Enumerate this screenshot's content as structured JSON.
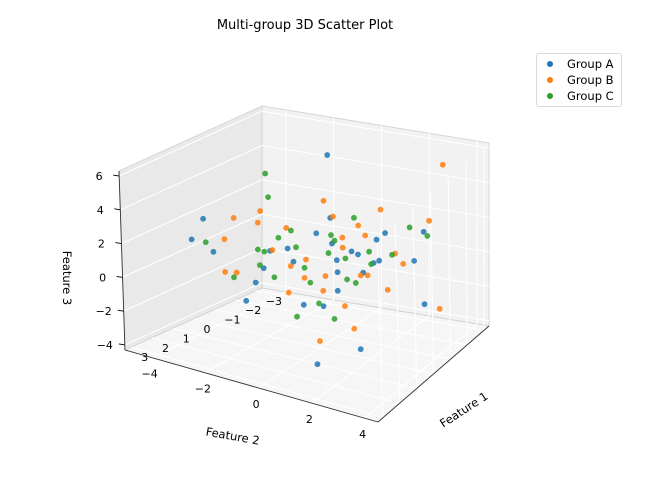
{
  "chart_data": {
    "type": "scatter",
    "projection": "3d",
    "title": "Multi-group 3D Scatter Plot",
    "xlabel": "Feature 1",
    "ylabel": "Feature 2",
    "zlabel": "Feature 3",
    "xlim": [
      3.3,
      -3.3
    ],
    "ylim": [
      -5,
      4.5
    ],
    "zlim": [
      -4.3,
      6.3
    ],
    "xticks": [
      "3",
      "2",
      "1",
      "0",
      "−1",
      "−2",
      "−3"
    ],
    "xtick_values": [
      3,
      2,
      1,
      0,
      -1,
      -2,
      -3
    ],
    "yticks": [
      "−4",
      "−2",
      "0",
      "2",
      "4"
    ],
    "ytick_values": [
      -4,
      -2,
      0,
      2,
      4
    ],
    "zticks": [
      "−4",
      "−2",
      "0",
      "2",
      "4",
      "6"
    ],
    "ztick_values": [
      -4,
      -2,
      0,
      2,
      4,
      6
    ],
    "grid": true,
    "legend_position": "top-right",
    "series": [
      {
        "name": "Group A",
        "color": "#1f77b4",
        "points": [
          [
            0.5,
            -4.6,
            0.8
          ],
          [
            0.3,
            -4.3,
            2.0
          ],
          [
            1.0,
            -2.1,
            -1.6
          ],
          [
            -1.4,
            3.2,
            -1.8
          ],
          [
            1.5,
            1.0,
            -3.8
          ],
          [
            0.8,
            2.2,
            -3.0
          ],
          [
            -1.9,
            -1.1,
            5.3
          ],
          [
            -0.2,
            0.4,
            1.8
          ],
          [
            -0.5,
            2.3,
            2.8
          ],
          [
            -0.9,
            -0.2,
            2.6
          ],
          [
            0.9,
            -1.2,
            1.6
          ],
          [
            0.5,
            -0.6,
            0.9
          ],
          [
            -1.8,
            2.5,
            0.2
          ],
          [
            -0.9,
            0.9,
            0.8
          ],
          [
            0.6,
            -1.7,
            0.2
          ],
          [
            -0.1,
            1.7,
            0.6
          ],
          [
            1.4,
            -1.4,
            0.0
          ],
          [
            -0.6,
            0.3,
            -0.2
          ],
          [
            0.7,
            0.7,
            -1.1
          ],
          [
            -1.1,
            1.6,
            0.5
          ],
          [
            -0.3,
            -0.3,
            2.1
          ],
          [
            0.1,
            1.4,
            1.9
          ],
          [
            1.3,
            -3.1,
            1.1
          ],
          [
            -2.2,
            2.6,
            1.6
          ],
          [
            0.2,
            0.9,
            -0.5
          ],
          [
            -0.7,
            0.2,
            0.4
          ],
          [
            1.2,
            0.3,
            -0.8
          ],
          [
            -1.5,
            1.2,
            1.3
          ],
          [
            0.4,
            -0.9,
            1.5
          ],
          [
            -0.4,
            1.9,
            1.0
          ]
        ]
      },
      {
        "name": "Group B",
        "color": "#ff7f0e",
        "points": [
          [
            -2.6,
            3.1,
            5.3
          ],
          [
            0.2,
            0.4,
            4.6
          ],
          [
            1.4,
            -2.2,
            3.5
          ],
          [
            1.1,
            -1.4,
            4.0
          ],
          [
            -0.4,
            0.3,
            3.2
          ],
          [
            0.6,
            -1.9,
            2.8
          ],
          [
            -1.2,
            1.6,
            3.4
          ],
          [
            1.2,
            0.9,
            -2.7
          ],
          [
            0.3,
            1.6,
            -2.4
          ],
          [
            -1.7,
            3.6,
            -2.2
          ],
          [
            1.0,
            -2.9,
            -0.2
          ],
          [
            0.1,
            1.1,
            -1.4
          ],
          [
            -0.6,
            2.3,
            -0.6
          ],
          [
            0.9,
            -0.4,
            1.0
          ],
          [
            -0.1,
            0.9,
            1.8
          ],
          [
            1.7,
            -1.9,
            0.6
          ],
          [
            -0.9,
            1.2,
            2.0
          ],
          [
            0.6,
            -0.1,
            0.2
          ],
          [
            -1.3,
            2.1,
            0.9
          ],
          [
            0.2,
            -1.1,
            2.5
          ],
          [
            -2.1,
            2.9,
            2.4
          ],
          [
            1.3,
            -0.2,
            -0.2
          ],
          [
            0.7,
            0.8,
            0.7
          ],
          [
            -0.2,
            1.8,
            0.4
          ],
          [
            0.4,
            -1.5,
            1.2
          ],
          [
            -1.0,
            0.2,
            1.5
          ],
          [
            0.9,
            0.2,
            1.6
          ],
          [
            -0.5,
            1.3,
            0.0
          ],
          [
            1.5,
            -2.5,
            2.2
          ],
          [
            -1.6,
            2.2,
            0.1
          ],
          [
            0.3,
            0.4,
            -0.6
          ],
          [
            -0.8,
            1.0,
            2.6
          ]
        ]
      },
      {
        "name": "Group C",
        "color": "#2ca02c",
        "points": [
          [
            -0.9,
            -2.8,
            4.4
          ],
          [
            -0.3,
            -2.2,
            3.6
          ],
          [
            0.8,
            -3.8,
            1.1
          ],
          [
            -2.4,
            2.6,
            1.2
          ],
          [
            0.9,
            -0.2,
            -1.9
          ],
          [
            0.4,
            0.9,
            -2.0
          ],
          [
            1.2,
            -2.4,
            -0.2
          ],
          [
            0.2,
            -0.4,
            0.4
          ],
          [
            -0.7,
            1.5,
            1.3
          ],
          [
            0.6,
            -1.1,
            2.2
          ],
          [
            -1.1,
            0.6,
            2.7
          ],
          [
            1.0,
            -1.6,
            1.6
          ],
          [
            -0.2,
            0.5,
            2.0
          ],
          [
            0.7,
            0.2,
            0.1
          ],
          [
            -1.4,
            1.9,
            0.7
          ],
          [
            0.1,
            -0.8,
            1.4
          ],
          [
            -0.5,
            1.1,
            -0.5
          ],
          [
            1.3,
            -1.3,
            1.0
          ],
          [
            -0.8,
            -0.1,
            1.7
          ],
          [
            0.5,
            1.5,
            0.6
          ],
          [
            -1.7,
            2.4,
            2.2
          ],
          [
            0.3,
            -1.9,
            0.9
          ],
          [
            -0.1,
            1.0,
            1.2
          ],
          [
            0.8,
            0.6,
            -0.9
          ],
          [
            -1.2,
            1.2,
            0.1
          ],
          [
            0.6,
            -0.6,
            2.8
          ],
          [
            -0.4,
            0.1,
            1.0
          ],
          [
            1.1,
            -0.9,
            0.3
          ]
        ]
      }
    ]
  }
}
